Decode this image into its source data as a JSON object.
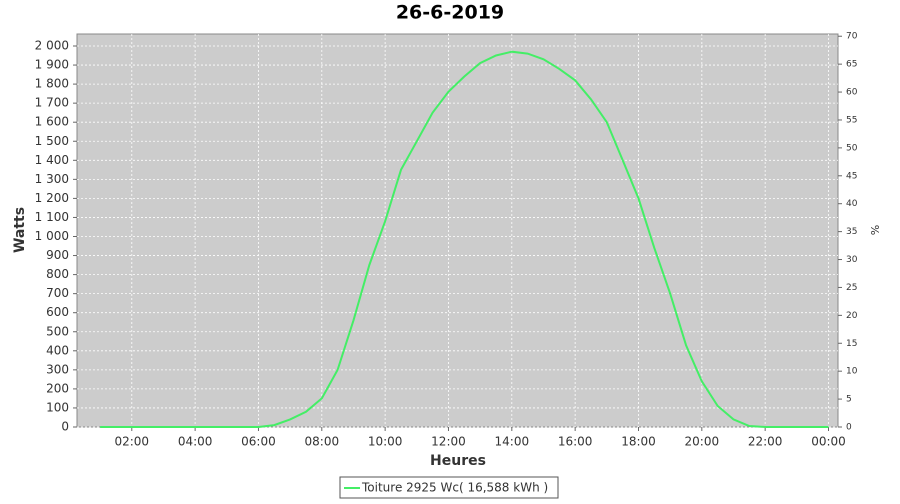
{
  "chart_data": {
    "type": "line",
    "title": "26-6-2019",
    "x_label": "Heures",
    "y_label": "Watts",
    "y2_label": "%",
    "x": [
      1,
      1.5,
      2,
      2.5,
      3,
      3.5,
      4,
      4.5,
      5,
      5.5,
      6,
      6.5,
      7,
      7.5,
      8,
      8.5,
      9,
      9.5,
      10,
      10.5,
      11,
      11.5,
      12,
      12.5,
      13,
      13.5,
      14,
      14.5,
      15,
      15.5,
      16,
      16.5,
      17,
      17.5,
      18,
      18.5,
      19,
      19.5,
      20,
      20.5,
      21,
      21.5,
      22,
      22.5,
      23,
      23.5,
      24
    ],
    "series": [
      {
        "name": "Toiture 2925 Wc( 16,588 kWh )",
        "color": "#44ee66",
        "values": [
          0,
          0,
          0,
          0,
          0,
          0,
          0,
          0,
          0,
          0,
          0,
          10,
          40,
          80,
          150,
          300,
          560,
          850,
          1080,
          1350,
          1500,
          1650,
          1760,
          1840,
          1910,
          1950,
          1970,
          1960,
          1930,
          1880,
          1820,
          1720,
          1600,
          1400,
          1200,
          940,
          700,
          430,
          240,
          110,
          40,
          5,
          0,
          0,
          0,
          0,
          0
        ]
      }
    ],
    "xlim": [
      0.27,
      24.3
    ],
    "xticks": [
      {
        "value": 2,
        "label": "02:00"
      },
      {
        "value": 4,
        "label": "04:00"
      },
      {
        "value": 6,
        "label": "06:00"
      },
      {
        "value": 8,
        "label": "08:00"
      },
      {
        "value": 10,
        "label": "10:00"
      },
      {
        "value": 12,
        "label": "12:00"
      },
      {
        "value": 14,
        "label": "14:00"
      },
      {
        "value": 16,
        "label": "16:00"
      },
      {
        "value": 18,
        "label": "18:00"
      },
      {
        "value": 20,
        "label": "20:00"
      },
      {
        "value": 22,
        "label": "22:00"
      },
      {
        "value": 24,
        "label": "00:00"
      }
    ],
    "ylim": [
      0,
      2063
    ],
    "yticks": [
      0,
      100,
      200,
      300,
      400,
      500,
      600,
      700,
      800,
      900,
      {
        "value": 1000,
        "label": "1 000"
      },
      {
        "value": 1100,
        "label": "1 100"
      },
      {
        "value": 1200,
        "label": "1 200"
      },
      {
        "value": 1300,
        "label": "1 300"
      },
      {
        "value": 1400,
        "label": "1 400"
      },
      {
        "value": 1500,
        "label": "1 500"
      },
      {
        "value": 1600,
        "label": "1 600"
      },
      {
        "value": 1700,
        "label": "1 700"
      },
      {
        "value": 1800,
        "label": "1 800"
      },
      {
        "value": 1900,
        "label": "1 900"
      },
      {
        "value": 2000,
        "label": "2 000"
      }
    ],
    "y2lim": [
      0,
      70.4
    ],
    "y2ticks": [
      0,
      5,
      10,
      15,
      20,
      25,
      30,
      35,
      40,
      45,
      50,
      55,
      60,
      65,
      70
    ],
    "grid": true
  }
}
